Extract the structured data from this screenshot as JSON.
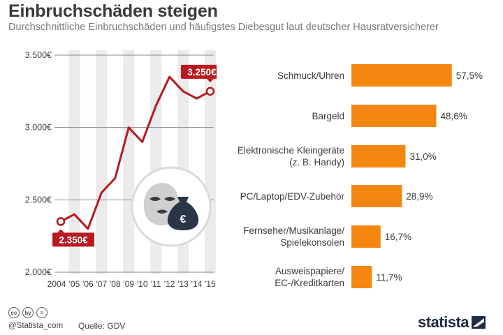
{
  "title": "Einbruchschäden steigen",
  "subtitle": "Durchschnittliche Einbruchschäden und häufigstes Diebesgut laut deutscher Hausratversicherer",
  "colors": {
    "line": "#b7191e",
    "bar": "#f5860f",
    "stripe": "#ebebeb",
    "text": "#3c3c3c"
  },
  "chart_data": [
    {
      "type": "line",
      "title": "Durchschnittliche Einbruchschäden",
      "x": [
        "2004",
        "'05",
        "'06",
        "'07",
        "'08",
        "'09",
        "'10",
        "'11",
        "'12",
        "'13",
        "'14",
        "'15"
      ],
      "values": [
        2350,
        2400,
        2300,
        2550,
        2650,
        3000,
        2900,
        3150,
        3350,
        3250,
        3200,
        3250
      ],
      "ylim": [
        2000,
        3500
      ],
      "yticks": [
        "2.000€",
        "2.500€",
        "3.000€",
        "3.500€"
      ],
      "yticks_values": [
        2000,
        2500,
        3000,
        3500
      ],
      "annotations": [
        {
          "label": "2.350€",
          "index": 0,
          "placement": "below"
        },
        {
          "label": "3.250€",
          "index": 11,
          "placement": "above"
        }
      ]
    },
    {
      "type": "bar",
      "orientation": "horizontal",
      "title": "Häufigstes Diebesgut",
      "categories": [
        [
          "Schmuck/Uhren"
        ],
        [
          "Bargeld"
        ],
        [
          "Elektronische Kleingeräte",
          "(z. B. Handy)"
        ],
        [
          "PC/Laptop/EDV-Zubehör"
        ],
        [
          "Fernseher/Musikanlage/",
          "Spielekonsolen"
        ],
        [
          "Ausweispapiere/",
          "EC-/Kreditkarten"
        ]
      ],
      "values": [
        57.5,
        48.6,
        31.0,
        28.9,
        16.7,
        11.7
      ],
      "value_labels": [
        "57,5%",
        "48,6%",
        "31,0%",
        "28,9%",
        "16,7%",
        "11,7%"
      ]
    }
  ],
  "footer": {
    "cc_icons": [
      "cc",
      "by",
      "="
    ],
    "handle": "@Statista_com",
    "source": "Quelle: GDV",
    "logo": "statista"
  }
}
